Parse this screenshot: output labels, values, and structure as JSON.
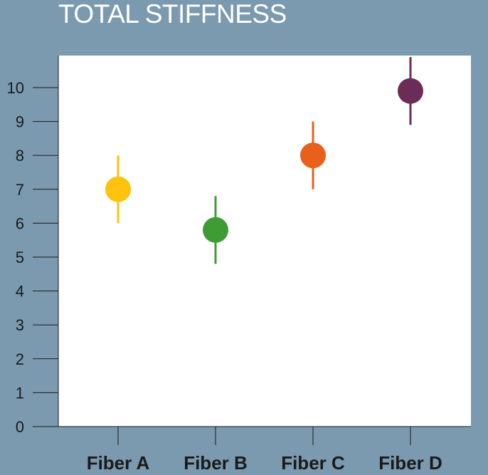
{
  "chart_data": {
    "type": "scatter",
    "title": "TOTAL STIFFNESS",
    "xlabel": "",
    "ylabel": "",
    "categories": [
      "Fiber A",
      "Fiber B",
      "Fiber C",
      "Fiber D"
    ],
    "ylim": [
      0,
      10.5
    ],
    "yticks": [
      0,
      1,
      2,
      3,
      4,
      5,
      6,
      7,
      8,
      9,
      10
    ],
    "grid": false,
    "points": [
      {
        "category": "Fiber A",
        "value": 7.0,
        "low": 6.0,
        "high": 8.0,
        "color": "#ffc20e"
      },
      {
        "category": "Fiber B",
        "value": 5.8,
        "low": 4.8,
        "high": 6.8,
        "color": "#3f9c35"
      },
      {
        "category": "Fiber C",
        "value": 8.0,
        "low": 7.0,
        "high": 9.0,
        "color": "#e8601c"
      },
      {
        "category": "Fiber D",
        "value": 9.9,
        "low": 8.9,
        "high": 10.9,
        "color": "#6b2d57"
      }
    ]
  },
  "colors": {
    "background": "#7b9aaf",
    "plot_area": "#ffffff",
    "axis": "#1a1a1a",
    "title": "#ffffff"
  }
}
